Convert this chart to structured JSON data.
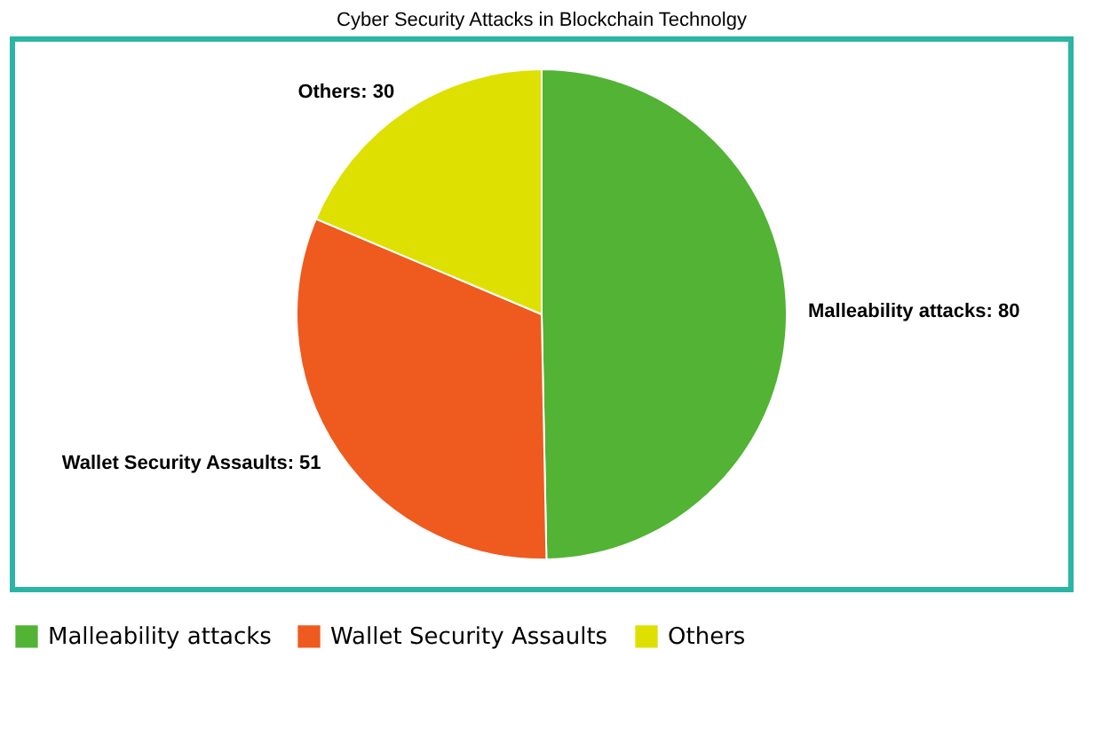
{
  "chart_data": {
    "type": "pie",
    "title": "Cyber Security Attacks in Blockchain Technolgy",
    "categories": [
      "Malleability attacks",
      "Wallet Security Assaults",
      "Others"
    ],
    "values": [
      80,
      51,
      30
    ],
    "value_labels": [
      "Malleability attacks: 80",
      "Wallet Security Assaults: 51",
      "Others: 30"
    ],
    "colors": [
      "#52b335",
      "#ef5a1f",
      "#dde000"
    ],
    "legend": "bottom"
  }
}
